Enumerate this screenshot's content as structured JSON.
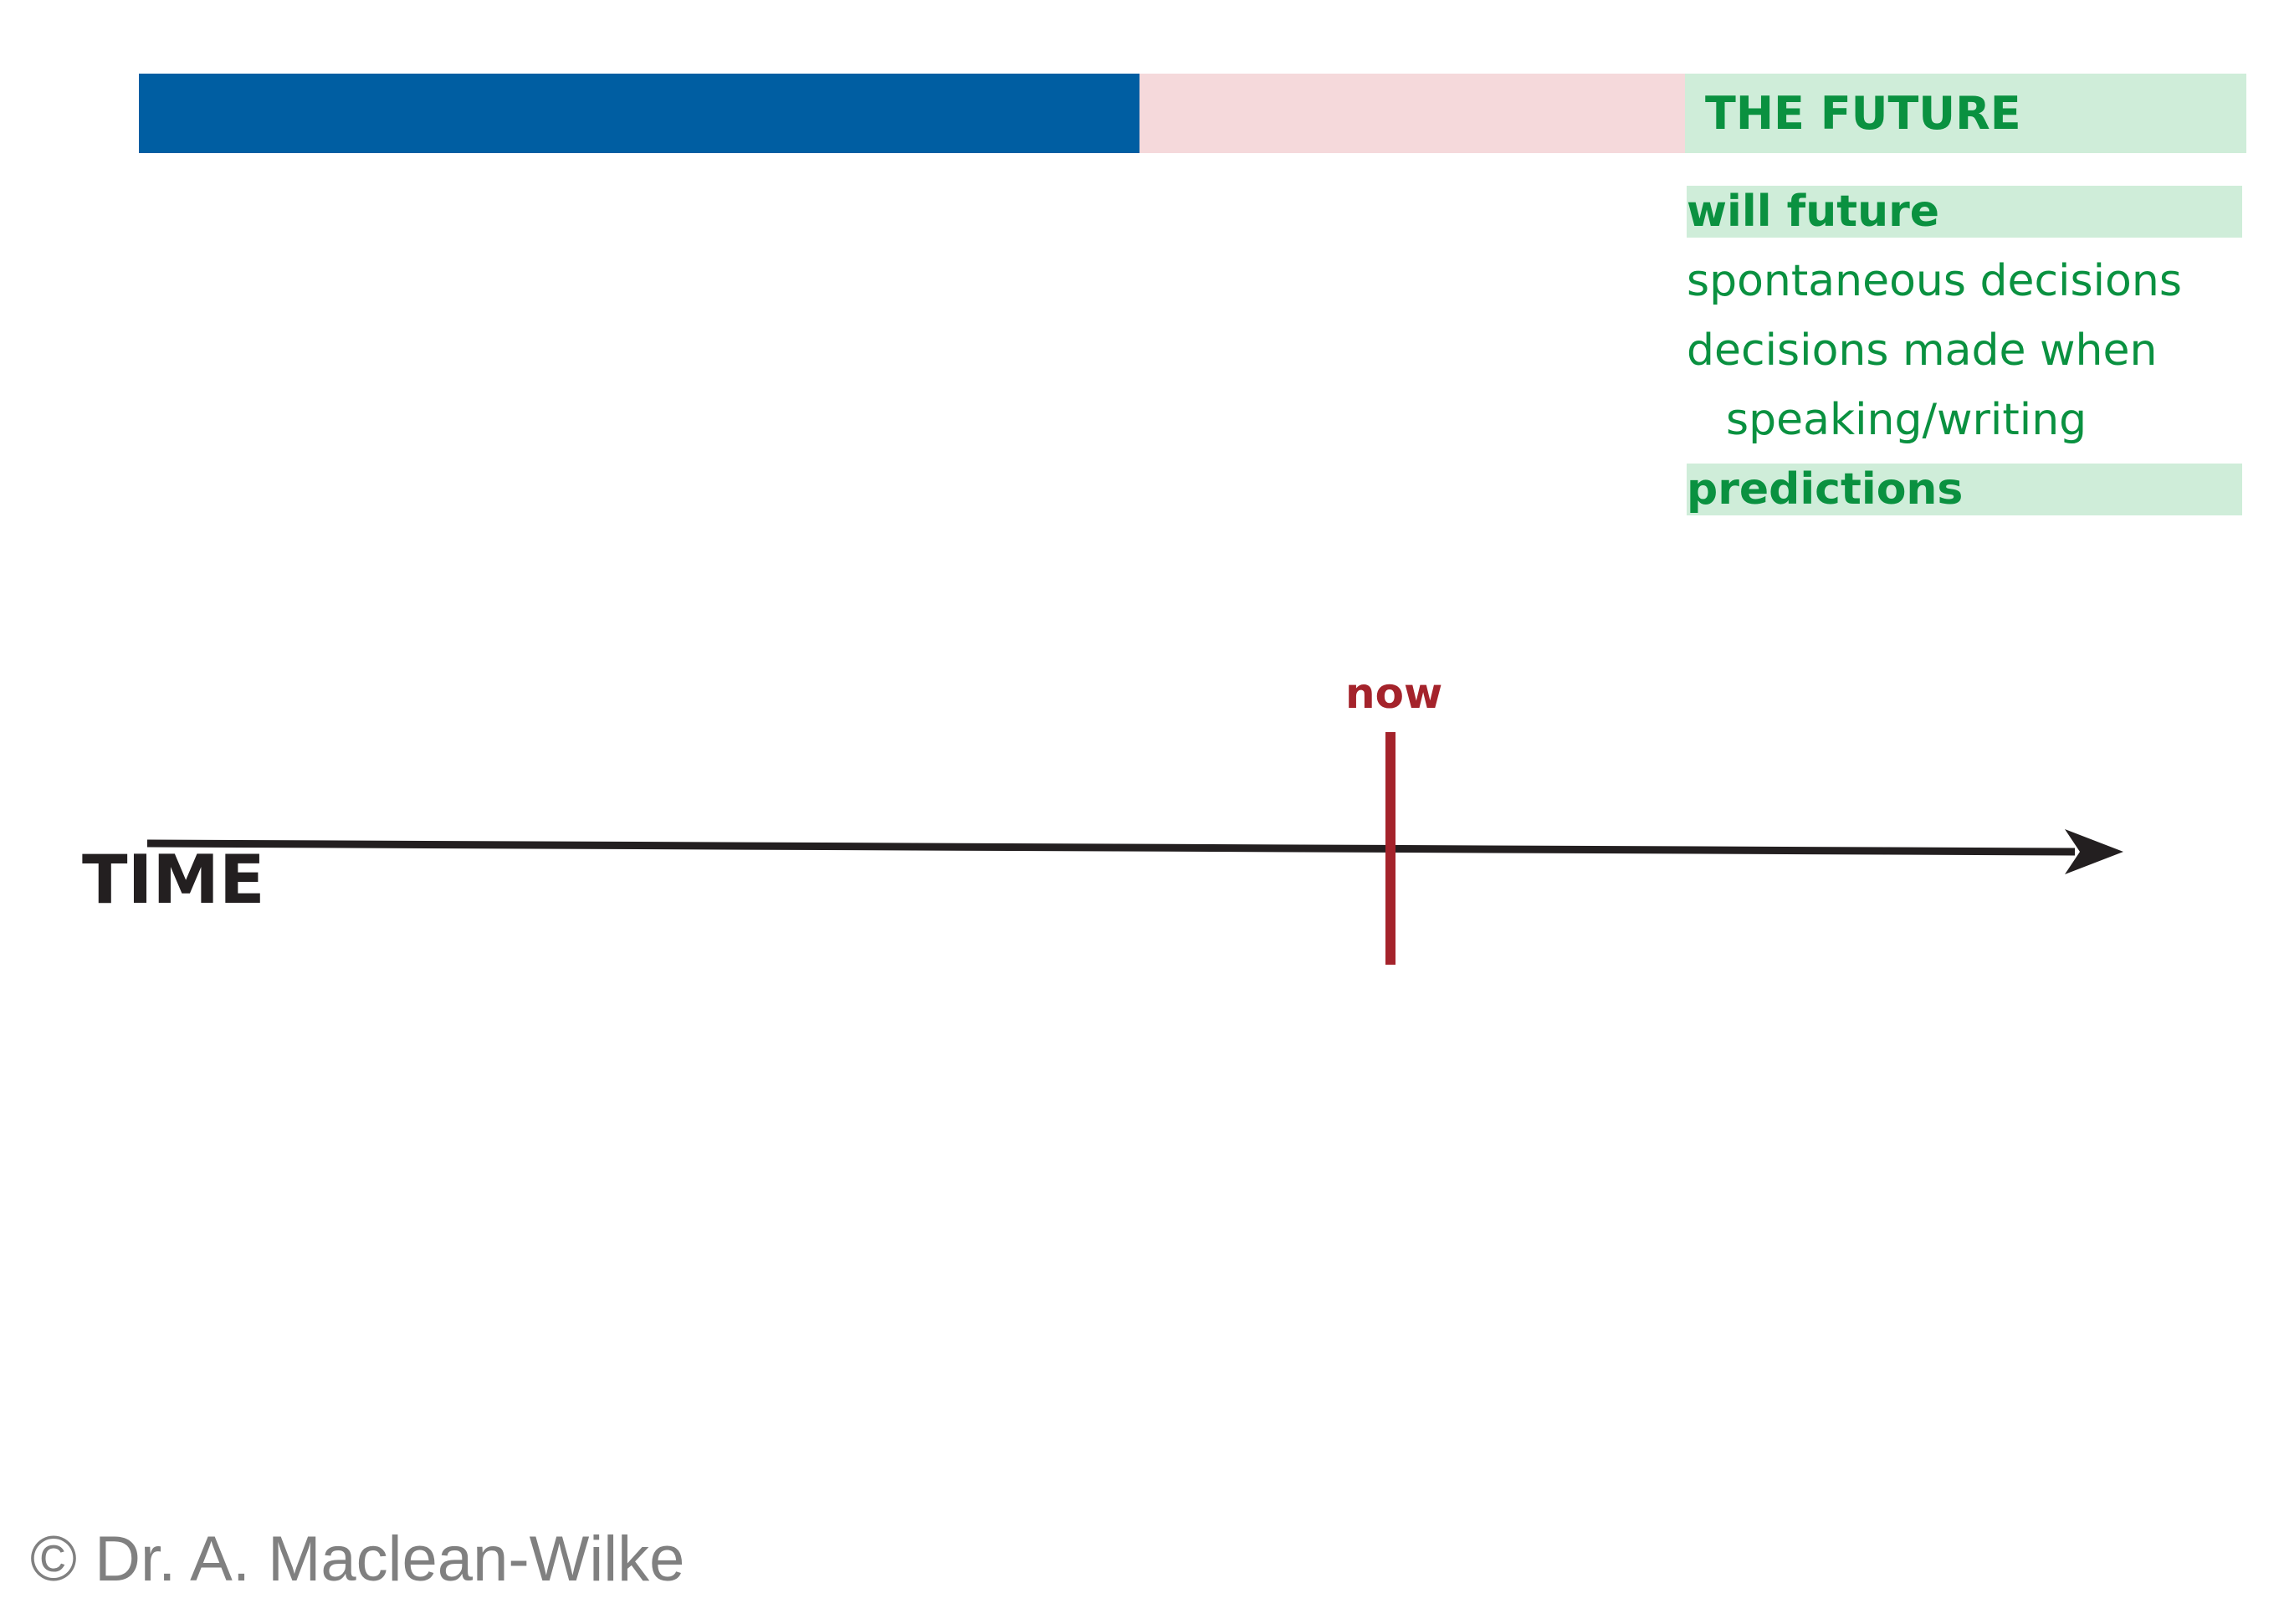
{
  "future": {
    "heading": "THE FUTURE",
    "uses": [
      {
        "text": "will future",
        "highlighted": true
      },
      {
        "text": "spontaneous decisions",
        "highlighted": false
      },
      {
        "text": "decisions made when",
        "continuation": "speaking/writing",
        "highlighted": false
      },
      {
        "text": "predictions",
        "highlighted": true
      }
    ]
  },
  "timeline": {
    "axis_label": "TIME",
    "now_label": "now"
  },
  "colors": {
    "past_bar": "#005ea2",
    "present_bar": "#f5d9db",
    "future_bar": "#cfedd9",
    "future_text": "#0a9140",
    "now_marker": "#a4232b",
    "axis": "#231f20"
  },
  "copyright": "© Dr. A. Maclean-Wilke"
}
